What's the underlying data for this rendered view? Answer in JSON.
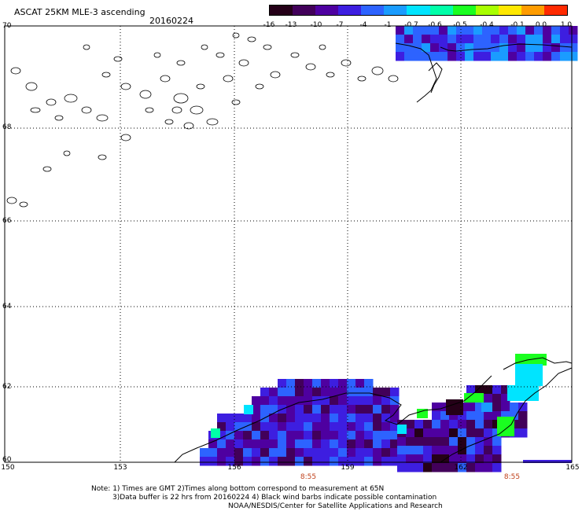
{
  "header": {
    "title": "ASCAT 25KM MLE-3 ascending",
    "date": "20160224"
  },
  "colorbar": {
    "labels": [
      "-16",
      "-13",
      "-10",
      "-7",
      "-4",
      "-1",
      "-0.7",
      "-0.6",
      "-0.5",
      "-0.4",
      "-0.1",
      "0.0",
      "1.0"
    ],
    "colors": [
      "#250018",
      "#42005a",
      "#4e00a0",
      "#3d1ee0",
      "#2d63ff",
      "#1a9cff",
      "#00e4ff",
      "#00ffa8",
      "#1aff20",
      "#a8ff00",
      "#ffe800",
      "#ff9c00",
      "#ff2a00"
    ]
  },
  "axes": {
    "lat_labels": [
      "70",
      "68",
      "66",
      "64",
      "62",
      "60"
    ],
    "lon_labels": [
      "150",
      "153",
      "156",
      "159",
      "162",
      "165"
    ]
  },
  "times": [
    "8:55",
    "8:55"
  ],
  "notes": {
    "line1": "Note: 1) Times are GMT 2)Times along bottom correspond to measurement at 65N",
    "line2": "3)Data buffer is 22 hrs from 20160224 4) Black wind barbs indicate possible contamination",
    "line3": "NOAA/NESDIS/Center for Satellite Applications and Research"
  },
  "colors": {
    "grid": "#000000",
    "coast": "#000000",
    "time_label": "#c0401a"
  }
}
